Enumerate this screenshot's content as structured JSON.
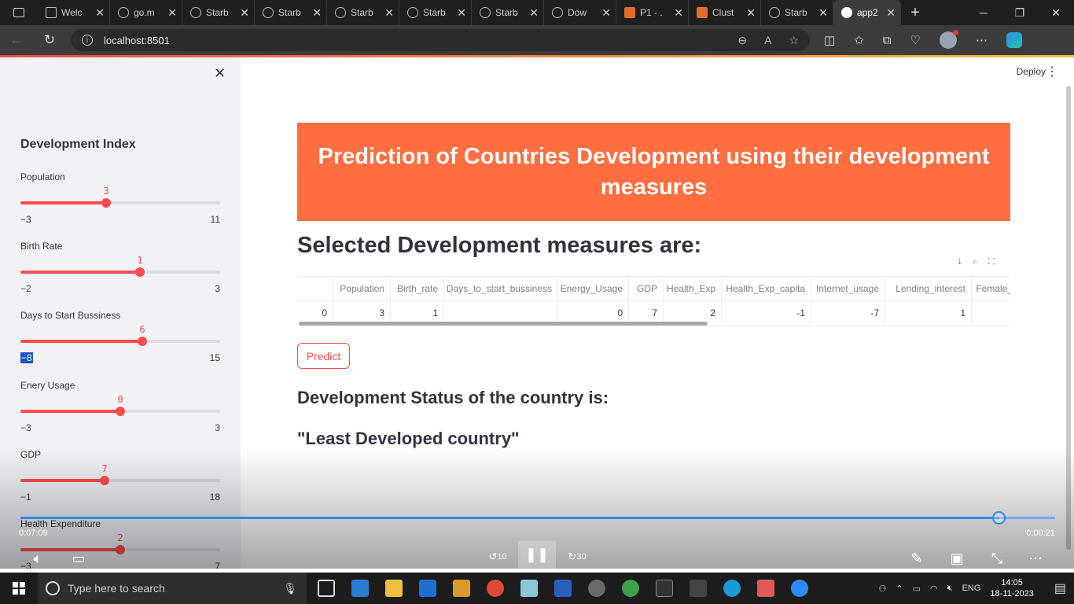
{
  "browser": {
    "tabs": [
      {
        "label": "Welc",
        "icon": "page-icon"
      },
      {
        "label": "go.m",
        "icon": "github-icon"
      },
      {
        "label": "Starb",
        "icon": "starbucks-icon"
      },
      {
        "label": "Starb",
        "icon": "starbucks-icon"
      },
      {
        "label": "Starb",
        "icon": "starbucks-icon"
      },
      {
        "label": "Starb",
        "icon": "starbucks-icon"
      },
      {
        "label": "Starb",
        "icon": "starbucks-icon"
      },
      {
        "label": "Dow",
        "icon": "loading-icon"
      },
      {
        "label": "P1 - .",
        "icon": "notebook-icon"
      },
      {
        "label": "Clust",
        "icon": "notebook-icon"
      },
      {
        "label": "Starb",
        "icon": "starbucks-icon"
      },
      {
        "label": "app2",
        "icon": "streamlit-icon"
      }
    ],
    "url": "localhost:8501"
  },
  "app": {
    "deploy_label": "Deploy",
    "sidebar": {
      "title": "Development Index",
      "sliders": [
        {
          "label": "Population",
          "value": "3",
          "min": "−3",
          "max": "11",
          "fraction": 0.43
        },
        {
          "label": "Birth Rate",
          "value": "1",
          "min": "−2",
          "max": "3",
          "fraction": 0.6
        },
        {
          "label": "Days to Start Bussiness",
          "value": "6",
          "min": "−8",
          "max": "15",
          "fraction": 0.61
        },
        {
          "label": "Enery Usage",
          "value": "0",
          "min": "−3",
          "max": "3",
          "fraction": 0.5
        },
        {
          "label": "GDP",
          "value": "7",
          "min": "−1",
          "max": "18",
          "fraction": 0.42
        },
        {
          "label": "Health Expenditure",
          "value": "2",
          "min": "−3",
          "max": "7",
          "fraction": 0.5
        }
      ]
    },
    "banner_title": "Prediction of Countries Development using their development measures",
    "selected_heading": "Selected Development measures are:",
    "table": {
      "columns": [
        "",
        "Population",
        "Birth_rate",
        "Days_to_start_bussiness",
        "Energy_Usage",
        "GDP",
        "Health_Exp",
        "Health_Exp_capita",
        "Internet_usage",
        "Lending_interest",
        "Female_"
      ],
      "rows": [
        [
          "0",
          "3",
          "1",
          "",
          "0",
          "7",
          "2",
          "-1",
          "-7",
          "1",
          ""
        ]
      ]
    },
    "predict_label": "Predict",
    "status_heading": "Development Status of the country is:",
    "status_result": "\"Least Developed country\""
  },
  "video": {
    "current_time": "0:07:09",
    "remaining_time": "0:00:21",
    "progress": 0.946,
    "skip_back": "10",
    "skip_forward": "30"
  },
  "taskbar": {
    "search_placeholder": "Type here to search",
    "language": "ENG",
    "time": "14:05",
    "date": "18-11-2023"
  },
  "colors": {
    "accent": "#ff4b4b",
    "banner": "#ff6e41"
  }
}
